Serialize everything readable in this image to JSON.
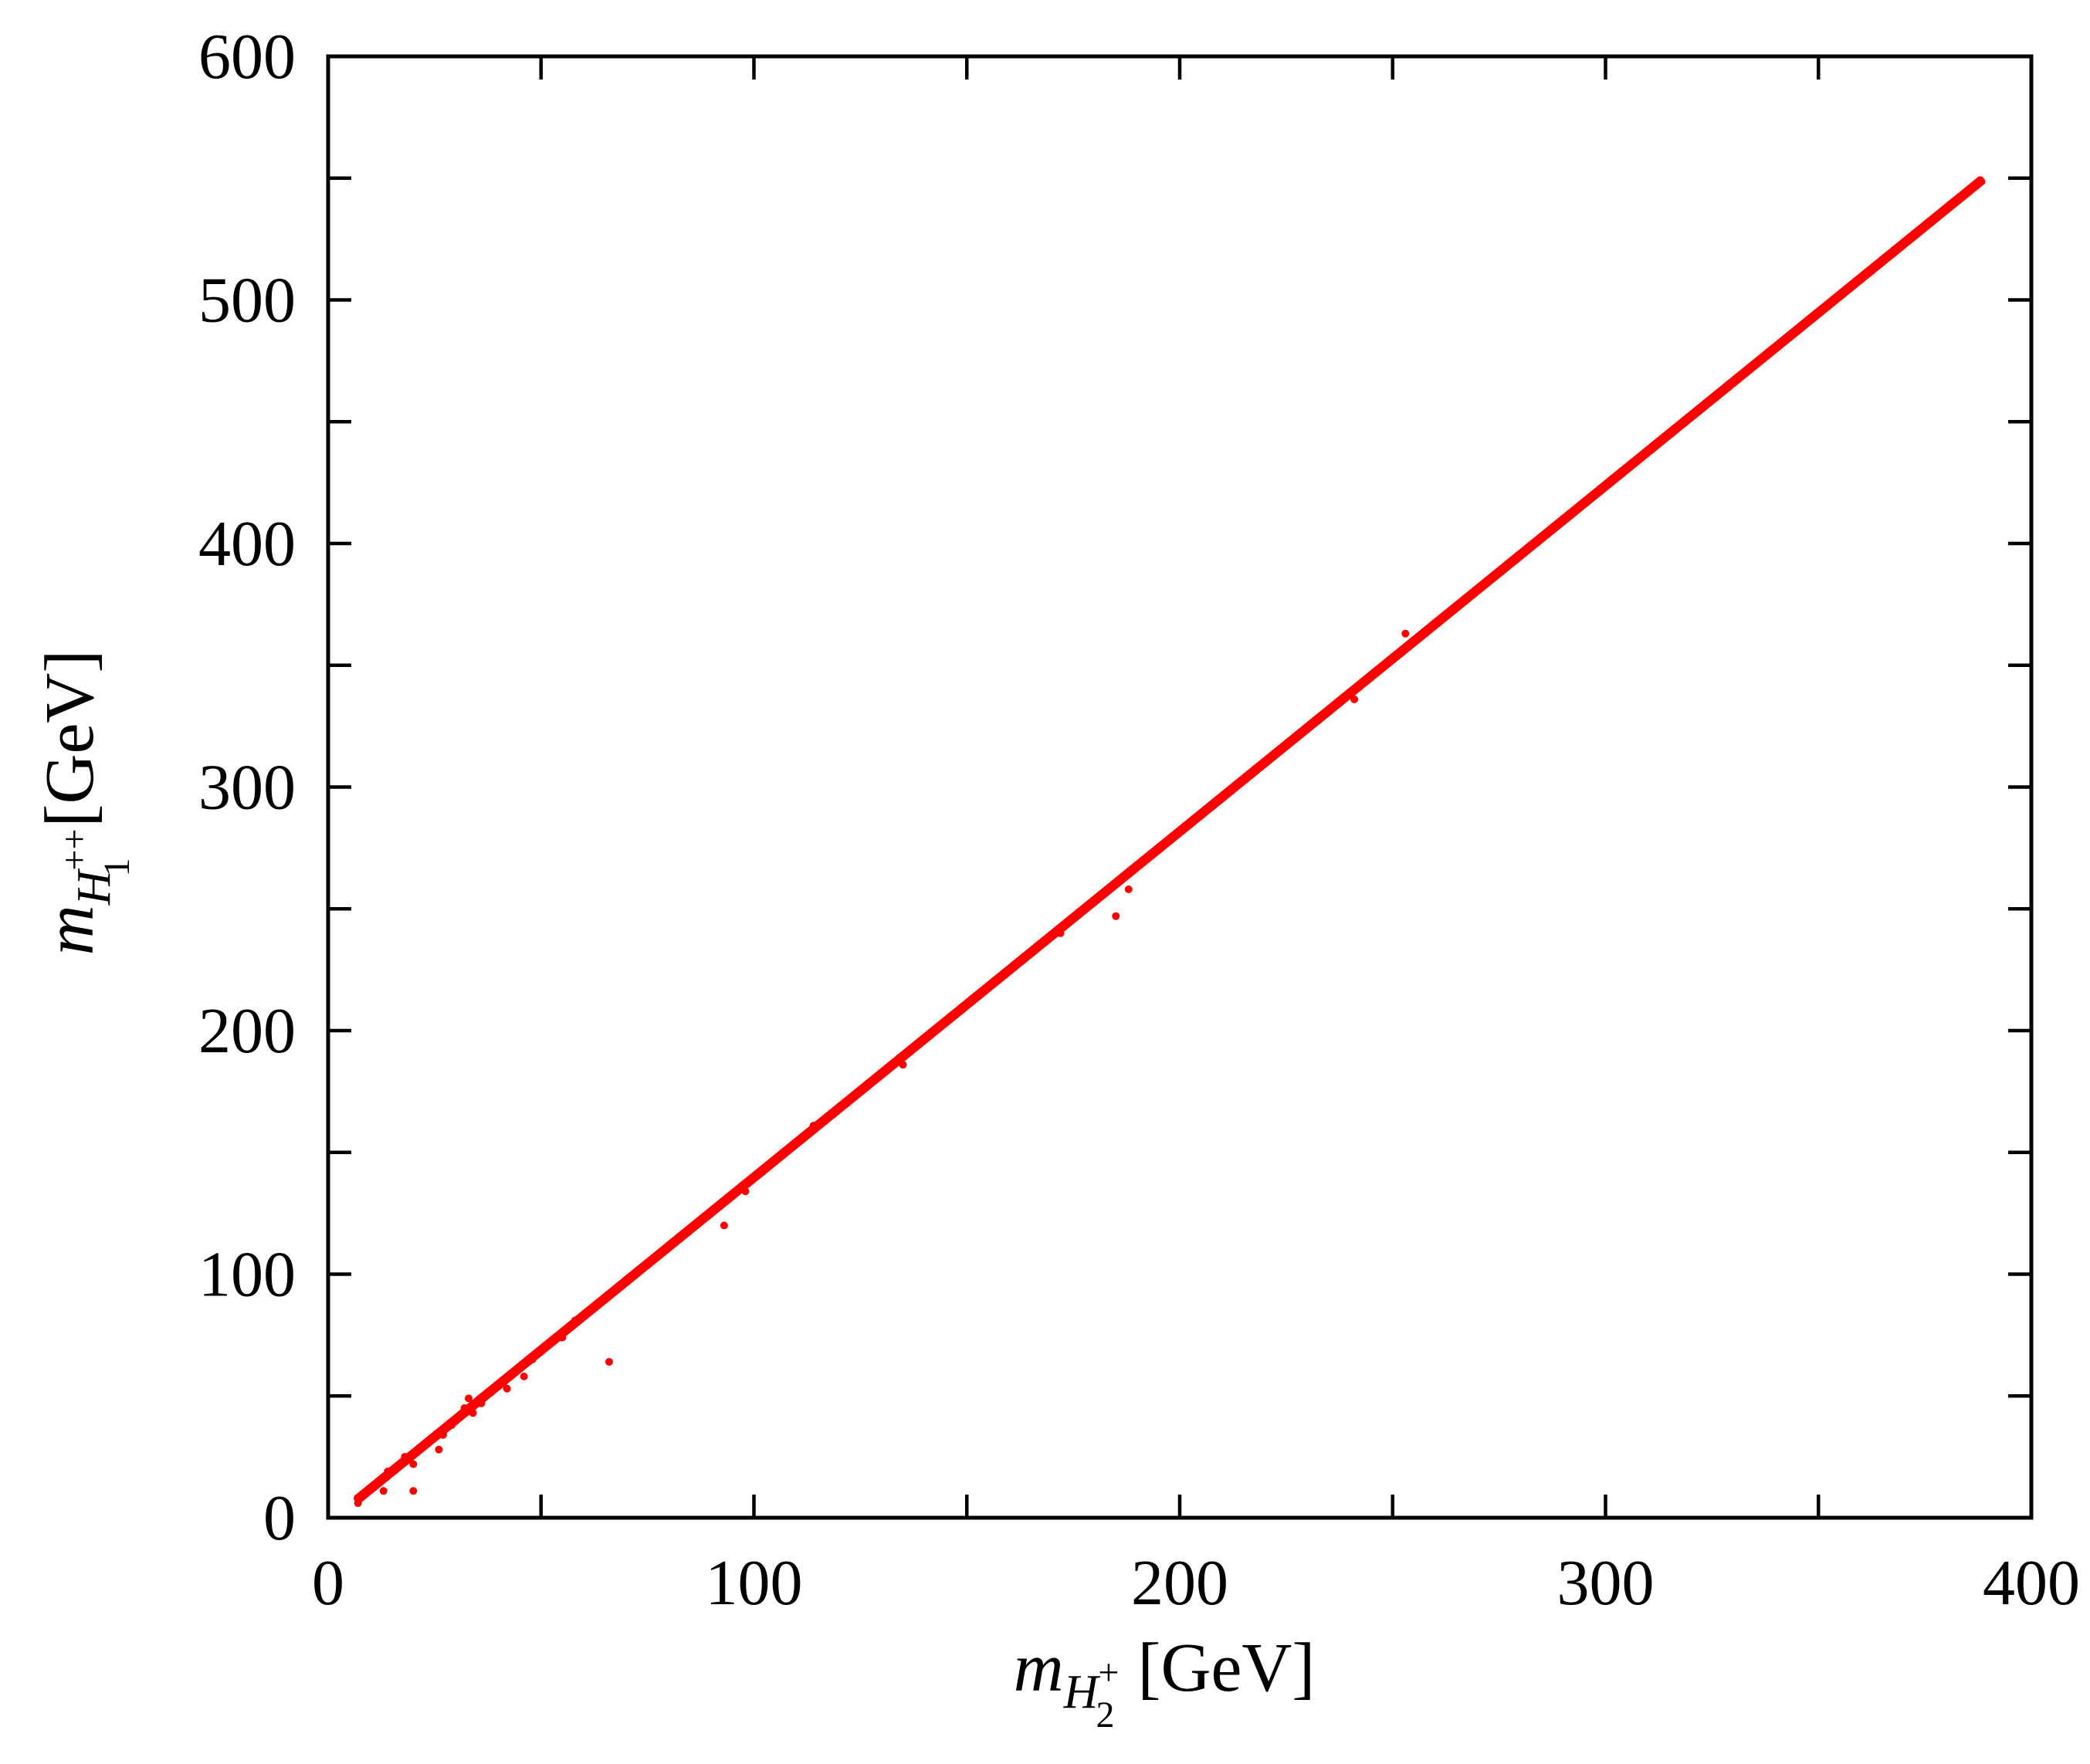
{
  "chart_data": {
    "type": "scatter",
    "title": "",
    "xlabel": {
      "symbol": "m",
      "sub": "H",
      "sub_sup": "+",
      "sub_sub": "2",
      "unit": "[GeV]"
    },
    "ylabel": {
      "symbol": "m",
      "sub": "H",
      "sub_sup": "++",
      "sub_sub": "1",
      "unit": "[GeV]"
    },
    "xlim": [
      0,
      400
    ],
    "ylim": [
      0,
      600
    ],
    "x_ticks": [
      "0",
      "100",
      "200",
      "300",
      "400"
    ],
    "y_ticks": [
      "0",
      "100",
      "200",
      "300",
      "400",
      "500",
      "600"
    ],
    "grid": false,
    "legend": "none",
    "marker_color": "#ff0000",
    "series": [
      {
        "trend": {
          "x_start": 7,
          "y_start": 8,
          "x_end": 388,
          "y_end": 549
        },
        "outliers": [
          {
            "x": 7,
            "y": 6
          },
          {
            "x": 13,
            "y": 11
          },
          {
            "x": 14,
            "y": 19
          },
          {
            "x": 16,
            "y": 20
          },
          {
            "x": 18,
            "y": 25
          },
          {
            "x": 20,
            "y": 11
          },
          {
            "x": 20,
            "y": 22
          },
          {
            "x": 22,
            "y": 29
          },
          {
            "x": 24,
            "y": 32
          },
          {
            "x": 26,
            "y": 28
          },
          {
            "x": 27,
            "y": 34
          },
          {
            "x": 29,
            "y": 38
          },
          {
            "x": 31,
            "y": 42
          },
          {
            "x": 32,
            "y": 45
          },
          {
            "x": 33,
            "y": 49
          },
          {
            "x": 34,
            "y": 43
          },
          {
            "x": 36,
            "y": 47
          },
          {
            "x": 38,
            "y": 52
          },
          {
            "x": 40,
            "y": 55
          },
          {
            "x": 42,
            "y": 53
          },
          {
            "x": 44,
            "y": 60
          },
          {
            "x": 46,
            "y": 58
          },
          {
            "x": 48,
            "y": 65
          },
          {
            "x": 51,
            "y": 70
          },
          {
            "x": 55,
            "y": 74
          },
          {
            "x": 58,
            "y": 81
          },
          {
            "x": 66,
            "y": 64
          },
          {
            "x": 93,
            "y": 120
          },
          {
            "x": 98,
            "y": 134
          },
          {
            "x": 102,
            "y": 142
          },
          {
            "x": 114,
            "y": 161
          },
          {
            "x": 135,
            "y": 186
          },
          {
            "x": 172,
            "y": 240
          },
          {
            "x": 185,
            "y": 247
          },
          {
            "x": 188,
            "y": 258
          },
          {
            "x": 241,
            "y": 336
          },
          {
            "x": 253,
            "y": 363
          }
        ]
      }
    ]
  }
}
